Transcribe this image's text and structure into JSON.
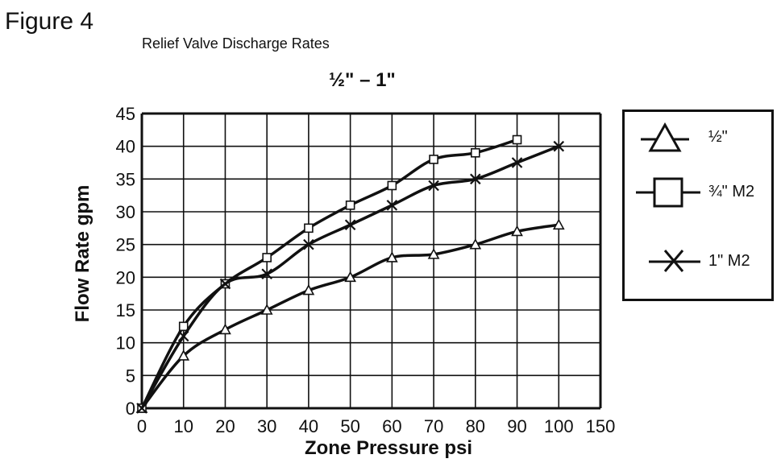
{
  "figure_label": "Figure 4",
  "subtitle": "Relief Valve Discharge Rates",
  "chart_data": {
    "type": "line",
    "title": "½\" – 1\"",
    "xlabel": "Zone Pressure psi",
    "ylabel": "Flow Rate gpm",
    "xlim": [
      0,
      110
    ],
    "ylim": [
      0,
      45
    ],
    "x_ticks": [
      "0",
      "10",
      "20",
      "30",
      "40",
      "50",
      "60",
      "70",
      "80",
      "90",
      "100",
      "150"
    ],
    "y_ticks": [
      "0",
      "5",
      "10",
      "15",
      "20",
      "25",
      "30",
      "35",
      "40",
      "45"
    ],
    "grid": true,
    "legend_position": "right",
    "series": [
      {
        "name": "½\"",
        "marker": "triangle",
        "x": [
          0,
          10,
          20,
          30,
          40,
          50,
          60,
          70,
          80,
          90,
          100
        ],
        "y": [
          0,
          8,
          12,
          15,
          18,
          20,
          23,
          23.5,
          25,
          27,
          28
        ]
      },
      {
        "name": "¾\" M2",
        "marker": "square",
        "x": [
          0,
          10,
          20,
          30,
          40,
          50,
          60,
          70,
          80,
          90
        ],
        "y": [
          0,
          12.5,
          19,
          23,
          27.5,
          31,
          34,
          38,
          39,
          41
        ]
      },
      {
        "name": "1\" M2",
        "marker": "x",
        "x": [
          0,
          10,
          20,
          30,
          40,
          50,
          60,
          70,
          80,
          90,
          100
        ],
        "y": [
          0,
          11,
          19,
          20.5,
          25,
          28,
          31,
          34,
          35,
          37.5,
          40
        ]
      }
    ]
  }
}
